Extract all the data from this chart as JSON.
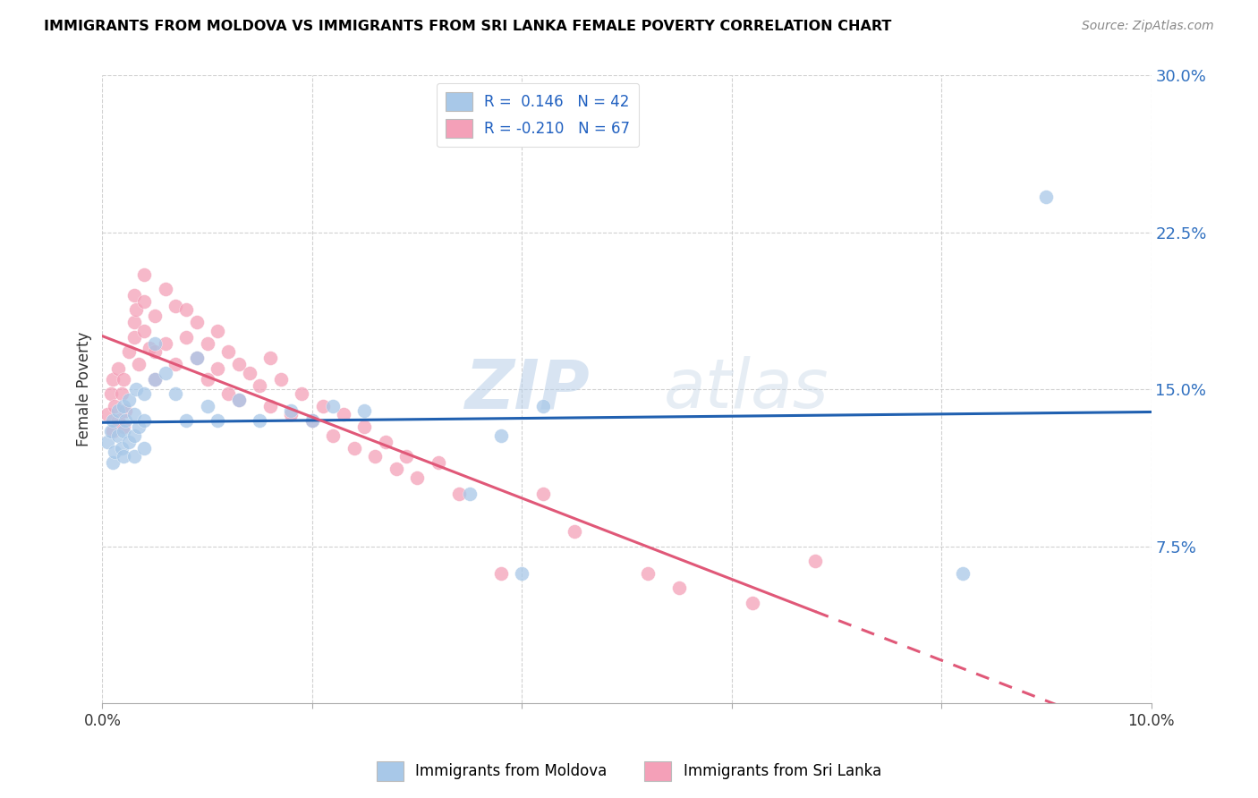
{
  "title": "IMMIGRANTS FROM MOLDOVA VS IMMIGRANTS FROM SRI LANKA FEMALE POVERTY CORRELATION CHART",
  "source": "Source: ZipAtlas.com",
  "ylabel": "Female Poverty",
  "xlim": [
    0,
    0.1
  ],
  "ylim": [
    0,
    0.3
  ],
  "xticks": [
    0.0,
    0.02,
    0.04,
    0.06,
    0.08,
    0.1
  ],
  "yticks": [
    0.075,
    0.15,
    0.225,
    0.3
  ],
  "ytick_labels": [
    "7.5%",
    "15.0%",
    "22.5%",
    "30.0%"
  ],
  "xtick_labels_show": [
    "0.0%",
    "10.0%"
  ],
  "legend_r_moldova": "0.146",
  "legend_n_moldova": "42",
  "legend_r_srilanka": "-0.210",
  "legend_n_srilanka": "67",
  "color_moldova": "#a8c8e8",
  "color_srilanka": "#f4a0b8",
  "line_color_moldova": "#2060b0",
  "line_color_srilanka": "#e05878",
  "watermark_zip": "ZIP",
  "watermark_atlas": "atlas",
  "moldova_x": [
    0.0005,
    0.0008,
    0.001,
    0.001,
    0.0012,
    0.0015,
    0.0015,
    0.0018,
    0.002,
    0.002,
    0.002,
    0.0022,
    0.0025,
    0.0025,
    0.003,
    0.003,
    0.003,
    0.0032,
    0.0035,
    0.004,
    0.004,
    0.004,
    0.005,
    0.005,
    0.006,
    0.007,
    0.008,
    0.009,
    0.01,
    0.011,
    0.013,
    0.015,
    0.018,
    0.02,
    0.022,
    0.025,
    0.035,
    0.038,
    0.04,
    0.042,
    0.082,
    0.09
  ],
  "moldova_y": [
    0.125,
    0.13,
    0.115,
    0.135,
    0.12,
    0.128,
    0.14,
    0.122,
    0.118,
    0.13,
    0.142,
    0.135,
    0.125,
    0.145,
    0.118,
    0.128,
    0.138,
    0.15,
    0.132,
    0.122,
    0.135,
    0.148,
    0.155,
    0.172,
    0.158,
    0.148,
    0.135,
    0.165,
    0.142,
    0.135,
    0.145,
    0.135,
    0.14,
    0.135,
    0.142,
    0.14,
    0.1,
    0.128,
    0.062,
    0.142,
    0.062,
    0.242
  ],
  "srilanka_x": [
    0.0005,
    0.0008,
    0.001,
    0.001,
    0.0012,
    0.0015,
    0.0015,
    0.0018,
    0.002,
    0.002,
    0.0022,
    0.0025,
    0.003,
    0.003,
    0.003,
    0.0032,
    0.0035,
    0.004,
    0.004,
    0.004,
    0.0045,
    0.005,
    0.005,
    0.005,
    0.006,
    0.006,
    0.007,
    0.007,
    0.008,
    0.008,
    0.009,
    0.009,
    0.01,
    0.01,
    0.011,
    0.011,
    0.012,
    0.012,
    0.013,
    0.013,
    0.014,
    0.015,
    0.016,
    0.016,
    0.017,
    0.018,
    0.019,
    0.02,
    0.021,
    0.022,
    0.023,
    0.024,
    0.025,
    0.026,
    0.027,
    0.028,
    0.029,
    0.03,
    0.032,
    0.034,
    0.038,
    0.042,
    0.045,
    0.052,
    0.055,
    0.062,
    0.068
  ],
  "srilanka_y": [
    0.138,
    0.148,
    0.13,
    0.155,
    0.142,
    0.135,
    0.16,
    0.148,
    0.132,
    0.155,
    0.14,
    0.168,
    0.175,
    0.182,
    0.195,
    0.188,
    0.162,
    0.178,
    0.205,
    0.192,
    0.17,
    0.185,
    0.168,
    0.155,
    0.198,
    0.172,
    0.19,
    0.162,
    0.188,
    0.175,
    0.165,
    0.182,
    0.172,
    0.155,
    0.178,
    0.16,
    0.168,
    0.148,
    0.162,
    0.145,
    0.158,
    0.152,
    0.165,
    0.142,
    0.155,
    0.138,
    0.148,
    0.135,
    0.142,
    0.128,
    0.138,
    0.122,
    0.132,
    0.118,
    0.125,
    0.112,
    0.118,
    0.108,
    0.115,
    0.1,
    0.062,
    0.1,
    0.082,
    0.062,
    0.055,
    0.048,
    0.068
  ]
}
